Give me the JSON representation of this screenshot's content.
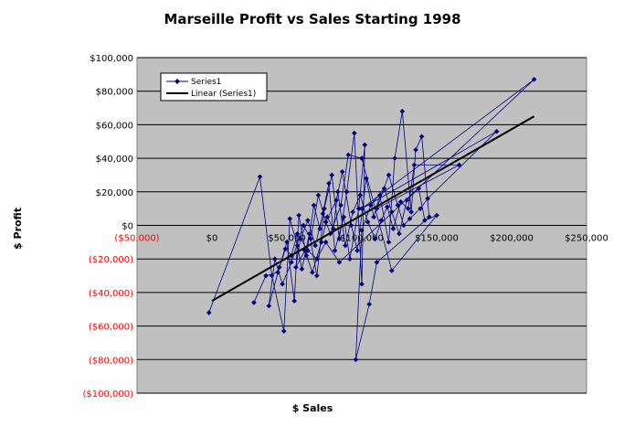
{
  "chart_data": {
    "type": "scatter",
    "title": "Marseille Profit vs Sales Starting 1998",
    "xlabel": "$ Sales",
    "ylabel": "$ Profit",
    "xlim": [
      -50000,
      250000
    ],
    "ylim": [
      -100000,
      100000
    ],
    "x_ticks": [
      -50000,
      0,
      50000,
      100000,
      150000,
      200000,
      250000
    ],
    "x_tick_labels": [
      "($50,000)",
      "$0",
      "$50,000",
      "$100,000",
      "$150,000",
      "$200,000",
      "$250,000"
    ],
    "y_ticks": [
      100000,
      80000,
      60000,
      40000,
      20000,
      0,
      -20000,
      -40000,
      -60000,
      -80000,
      -100000
    ],
    "y_tick_labels": [
      "$100,000",
      "$80,000",
      "$60,000",
      "$40,000",
      "$20,000",
      "$0",
      "($20,000)",
      "($40,000)",
      "($60,000)",
      "($80,000)",
      "($100,000)"
    ],
    "negative_label_color": "#ff0000",
    "plot_background": "#c0c0c0",
    "grid": "horizontal",
    "legend_position": "top-left",
    "series": [
      {
        "name": "Series1",
        "color": "#000080",
        "marker": "diamond",
        "connected": true,
        "points": [
          [
            -2000,
            -52000
          ],
          [
            32000,
            29000
          ],
          [
            40000,
            -30000
          ],
          [
            48000,
            -63000
          ],
          [
            52000,
            4000
          ],
          [
            57000,
            -12000
          ],
          [
            60000,
            -26000
          ],
          [
            65000,
            -5000
          ],
          [
            70000,
            -30000
          ],
          [
            75000,
            10000
          ],
          [
            80000,
            30000
          ],
          [
            85000,
            -8000
          ],
          [
            90000,
            20000
          ],
          [
            95000,
            55000
          ],
          [
            100000,
            -35000
          ],
          [
            102000,
            48000
          ],
          [
            98000,
            10000
          ],
          [
            92000,
            -20000
          ],
          [
            88000,
            5000
          ],
          [
            82000,
            -15000
          ],
          [
            78000,
            25000
          ],
          [
            72000,
            -2000
          ],
          [
            68000,
            12000
          ],
          [
            63000,
            -18000
          ],
          [
            58000,
            6000
          ],
          [
            55000,
            -45000
          ],
          [
            50000,
            -10000
          ],
          [
            45000,
            -25000
          ],
          [
            38000,
            -48000
          ],
          [
            42000,
            -20000
          ],
          [
            47000,
            -35000
          ],
          [
            53000,
            -22000
          ],
          [
            61000,
            0
          ],
          [
            66000,
            -8000
          ],
          [
            71000,
            18000
          ],
          [
            76000,
            2000
          ],
          [
            83000,
            15000
          ],
          [
            87000,
            32000
          ],
          [
            93000,
            0
          ],
          [
            97000,
            -15000
          ],
          [
            103000,
            28000
          ],
          [
            108000,
            5000
          ],
          [
            112000,
            18000
          ],
          [
            118000,
            -10000
          ],
          [
            122000,
            40000
          ],
          [
            127000,
            68000
          ],
          [
            133000,
            8000
          ],
          [
            136000,
            45000
          ],
          [
            140000,
            53000
          ],
          [
            145000,
            5000
          ],
          [
            110000,
            -22000
          ],
          [
            105000,
            -47000
          ],
          [
            96000,
            -80000
          ],
          [
            100000,
            -3000
          ],
          [
            106000,
            12000
          ],
          [
            115000,
            22000
          ],
          [
            120000,
            8000
          ],
          [
            125000,
            -5000
          ],
          [
            130000,
            15000
          ],
          [
            138000,
            22000
          ],
          [
            142000,
            3000
          ],
          [
            150000,
            6000
          ],
          [
            120000,
            -27000
          ],
          [
            100000,
            40000
          ],
          [
            91000,
            42000
          ],
          [
            86000,
            12000
          ],
          [
            79000,
            -5000
          ],
          [
            74000,
            7000
          ],
          [
            69000,
            -12000
          ],
          [
            64000,
            3000
          ],
          [
            59000,
            -8000
          ],
          [
            56000,
            -25000
          ],
          [
            62000,
            -15000
          ],
          [
            67000,
            -28000
          ],
          [
            73000,
            -10000
          ],
          [
            77000,
            5000
          ],
          [
            81000,
            -2000
          ],
          [
            84000,
            20000
          ],
          [
            89000,
            -12000
          ],
          [
            94000,
            8000
          ],
          [
            99000,
            18000
          ],
          [
            104000,
            2000
          ],
          [
            109000,
            -8000
          ],
          [
            113000,
            3000
          ],
          [
            117000,
            11000
          ],
          [
            121000,
            -2000
          ],
          [
            126000,
            14000
          ],
          [
            131000,
            10000
          ],
          [
            135000,
            36000
          ],
          [
            165000,
            36000
          ],
          [
            110000,
            10000
          ],
          [
            118000,
            30000
          ],
          [
            124000,
            12000
          ],
          [
            128000,
            0
          ],
          [
            132000,
            4000
          ],
          [
            139000,
            10000
          ],
          [
            144000,
            16000
          ],
          [
            190000,
            56000
          ],
          [
            100000,
            10000
          ],
          [
            215000,
            87000
          ],
          [
            85000,
            -22000
          ],
          [
            76000,
            -10000
          ],
          [
            70000,
            -20000
          ],
          [
            64000,
            -15000
          ],
          [
            57000,
            -5000
          ],
          [
            53000,
            -18000
          ],
          [
            49000,
            -14000
          ],
          [
            44000,
            -28000
          ],
          [
            36000,
            -30000
          ],
          [
            28000,
            -46000
          ]
        ]
      },
      {
        "name": "Linear (Series1)",
        "color": "#000000",
        "type": "trendline",
        "points": [
          [
            0,
            -45000
          ],
          [
            215000,
            65000
          ]
        ]
      }
    ]
  }
}
